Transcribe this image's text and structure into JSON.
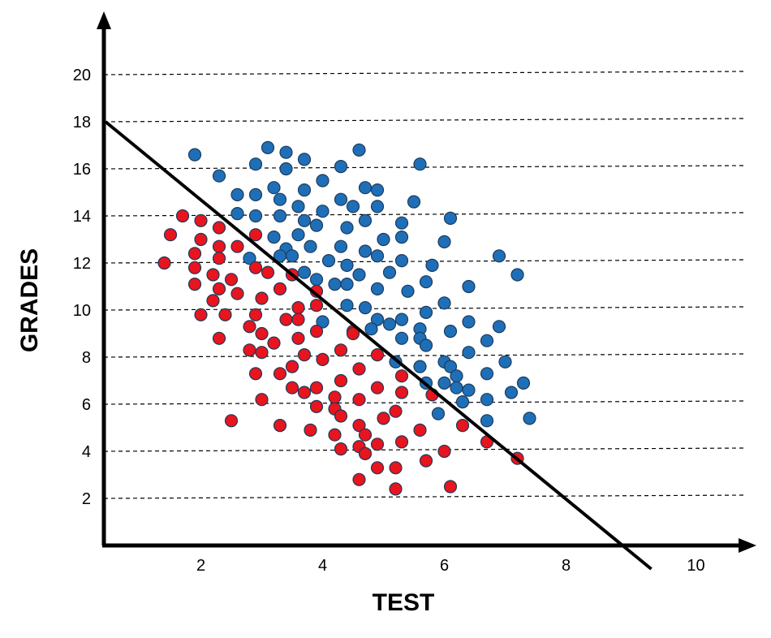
{
  "chart_data": {
    "type": "scatter",
    "title": "",
    "xlabel": "TEST",
    "ylabel": "GRADES",
    "xlim": [
      0.5,
      11.0
    ],
    "ylim": [
      0,
      21
    ],
    "x_ticks": [
      2,
      4,
      6,
      8,
      10
    ],
    "y_ticks": [
      2,
      4,
      6,
      8,
      10,
      12,
      14,
      16,
      18,
      20
    ],
    "grid": "horizontal dashed",
    "legend": "none",
    "colors": {
      "blue": "#1f6fb8",
      "red": "#e8141e",
      "point_stroke": "#1c3b5a",
      "grid": "#000000",
      "line": "#000000"
    },
    "decision_line": {
      "x": [
        0.5,
        9.4
      ],
      "y": [
        18.0,
        -1.0
      ]
    },
    "series": [
      {
        "color": "blue",
        "points": [
          [
            1.9,
            16.6
          ],
          [
            2.3,
            15.7
          ],
          [
            3.1,
            16.9
          ],
          [
            3.4,
            16.7
          ],
          [
            3.7,
            16.4
          ],
          [
            2.9,
            16.2
          ],
          [
            4.3,
            16.1
          ],
          [
            4.6,
            16.8
          ],
          [
            5.6,
            16.2
          ],
          [
            4.0,
            15.5
          ],
          [
            3.4,
            16.0
          ],
          [
            3.2,
            15.2
          ],
          [
            3.7,
            15.1
          ],
          [
            4.7,
            15.2
          ],
          [
            4.9,
            15.1
          ],
          [
            2.6,
            14.9
          ],
          [
            2.9,
            14.9
          ],
          [
            3.3,
            14.7
          ],
          [
            3.6,
            14.4
          ],
          [
            4.0,
            14.2
          ],
          [
            4.3,
            14.7
          ],
          [
            4.5,
            14.4
          ],
          [
            4.9,
            14.4
          ],
          [
            5.5,
            14.6
          ],
          [
            2.6,
            14.1
          ],
          [
            2.9,
            14.0
          ],
          [
            3.3,
            14.0
          ],
          [
            3.7,
            13.8
          ],
          [
            3.9,
            13.6
          ],
          [
            4.4,
            13.5
          ],
          [
            4.7,
            13.8
          ],
          [
            5.3,
            13.7
          ],
          [
            6.1,
            13.9
          ],
          [
            3.2,
            13.1
          ],
          [
            3.6,
            13.2
          ],
          [
            5.0,
            13.0
          ],
          [
            5.3,
            13.1
          ],
          [
            6.0,
            12.9
          ],
          [
            3.4,
            12.6
          ],
          [
            3.8,
            12.7
          ],
          [
            4.3,
            12.7
          ],
          [
            4.7,
            12.5
          ],
          [
            4.9,
            12.3
          ],
          [
            6.9,
            12.3
          ],
          [
            2.8,
            12.2
          ],
          [
            3.3,
            12.3
          ],
          [
            3.5,
            12.3
          ],
          [
            4.1,
            12.1
          ],
          [
            4.4,
            11.9
          ],
          [
            5.3,
            12.1
          ],
          [
            5.8,
            11.9
          ],
          [
            3.7,
            11.6
          ],
          [
            4.6,
            11.5
          ],
          [
            5.1,
            11.6
          ],
          [
            7.2,
            11.5
          ],
          [
            3.9,
            11.3
          ],
          [
            4.2,
            11.1
          ],
          [
            4.4,
            11.1
          ],
          [
            4.9,
            10.9
          ],
          [
            5.7,
            11.2
          ],
          [
            5.4,
            10.8
          ],
          [
            6.4,
            11.0
          ],
          [
            6.0,
            10.3
          ],
          [
            4.4,
            10.2
          ],
          [
            4.7,
            10.1
          ],
          [
            5.7,
            9.9
          ],
          [
            4.0,
            9.5
          ],
          [
            4.9,
            9.6
          ],
          [
            5.3,
            9.6
          ],
          [
            5.1,
            9.4
          ],
          [
            6.4,
            9.5
          ],
          [
            4.8,
            9.2
          ],
          [
            5.6,
            9.2
          ],
          [
            6.1,
            9.1
          ],
          [
            6.9,
            9.3
          ],
          [
            5.3,
            8.8
          ],
          [
            5.6,
            8.8
          ],
          [
            5.7,
            8.5
          ],
          [
            6.7,
            8.7
          ],
          [
            6.4,
            8.2
          ],
          [
            5.2,
            7.8
          ],
          [
            6.0,
            7.8
          ],
          [
            6.1,
            7.6
          ],
          [
            5.6,
            7.6
          ],
          [
            7.0,
            7.8
          ],
          [
            6.2,
            7.2
          ],
          [
            6.7,
            7.3
          ],
          [
            5.7,
            6.9
          ],
          [
            6.0,
            6.9
          ],
          [
            6.2,
            6.7
          ],
          [
            6.4,
            6.6
          ],
          [
            7.3,
            6.9
          ],
          [
            7.1,
            6.5
          ],
          [
            6.3,
            6.1
          ],
          [
            6.7,
            6.2
          ],
          [
            5.9,
            5.6
          ],
          [
            6.7,
            5.3
          ],
          [
            7.4,
            5.4
          ]
        ]
      },
      {
        "color": "red",
        "points": [
          [
            1.7,
            14.0
          ],
          [
            2.0,
            13.8
          ],
          [
            2.3,
            13.5
          ],
          [
            1.5,
            13.2
          ],
          [
            2.0,
            13.0
          ],
          [
            2.9,
            13.2
          ],
          [
            2.3,
            12.7
          ],
          [
            2.6,
            12.7
          ],
          [
            1.9,
            12.4
          ],
          [
            2.3,
            12.2
          ],
          [
            1.4,
            12.0
          ],
          [
            1.9,
            11.8
          ],
          [
            2.9,
            11.8
          ],
          [
            3.1,
            11.6
          ],
          [
            2.2,
            11.5
          ],
          [
            2.5,
            11.3
          ],
          [
            3.5,
            11.5
          ],
          [
            1.9,
            11.1
          ],
          [
            2.3,
            10.9
          ],
          [
            2.6,
            10.7
          ],
          [
            3.3,
            10.9
          ],
          [
            3.9,
            10.8
          ],
          [
            2.2,
            10.4
          ],
          [
            3.0,
            10.5
          ],
          [
            3.6,
            10.1
          ],
          [
            3.9,
            10.2
          ],
          [
            2.0,
            9.8
          ],
          [
            2.4,
            9.8
          ],
          [
            2.9,
            9.8
          ],
          [
            3.4,
            9.6
          ],
          [
            3.6,
            9.6
          ],
          [
            2.8,
            9.3
          ],
          [
            3.0,
            9.0
          ],
          [
            3.2,
            8.6
          ],
          [
            3.6,
            8.8
          ],
          [
            3.9,
            9.1
          ],
          [
            4.5,
            9.1
          ],
          [
            4.5,
            9.0
          ],
          [
            2.3,
            8.8
          ],
          [
            2.8,
            8.3
          ],
          [
            3.0,
            8.2
          ],
          [
            3.7,
            8.1
          ],
          [
            4.0,
            7.9
          ],
          [
            4.3,
            8.3
          ],
          [
            4.9,
            8.1
          ],
          [
            3.5,
            7.6
          ],
          [
            3.3,
            7.3
          ],
          [
            2.9,
            7.3
          ],
          [
            4.6,
            7.5
          ],
          [
            5.3,
            7.2
          ],
          [
            4.3,
            7.0
          ],
          [
            3.5,
            6.7
          ],
          [
            3.7,
            6.5
          ],
          [
            3.9,
            6.7
          ],
          [
            4.9,
            6.7
          ],
          [
            3.0,
            6.2
          ],
          [
            4.2,
            6.3
          ],
          [
            4.6,
            6.2
          ],
          [
            5.3,
            6.5
          ],
          [
            5.8,
            6.4
          ],
          [
            3.9,
            5.9
          ],
          [
            4.2,
            5.8
          ],
          [
            4.3,
            5.5
          ],
          [
            5.2,
            5.7
          ],
          [
            2.5,
            5.3
          ],
          [
            3.3,
            5.1
          ],
          [
            3.8,
            4.9
          ],
          [
            4.6,
            5.1
          ],
          [
            5.0,
            5.4
          ],
          [
            5.6,
            4.9
          ],
          [
            6.3,
            5.1
          ],
          [
            4.2,
            4.7
          ],
          [
            4.7,
            4.7
          ],
          [
            5.3,
            4.4
          ],
          [
            4.3,
            4.1
          ],
          [
            4.6,
            4.2
          ],
          [
            4.7,
            3.9
          ],
          [
            4.9,
            4.3
          ],
          [
            5.7,
            3.6
          ],
          [
            6.0,
            4.0
          ],
          [
            6.7,
            4.4
          ],
          [
            7.2,
            3.7
          ],
          [
            4.9,
            3.3
          ],
          [
            5.2,
            3.3
          ],
          [
            4.6,
            2.8
          ],
          [
            5.2,
            2.4
          ],
          [
            6.1,
            2.5
          ]
        ]
      }
    ]
  }
}
